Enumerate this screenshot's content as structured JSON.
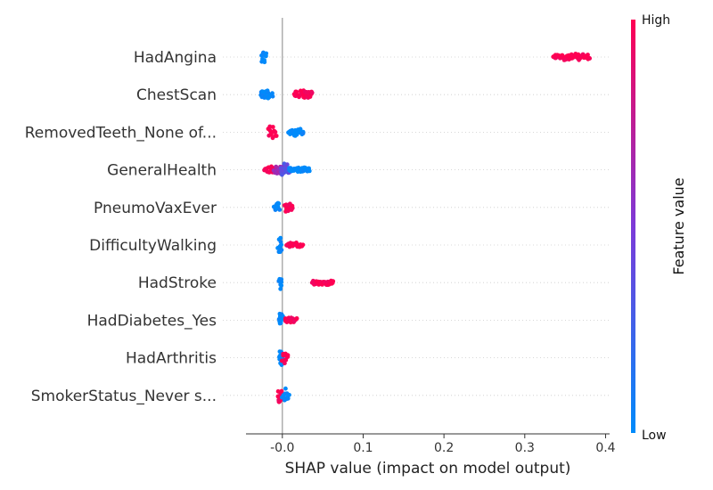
{
  "colors": {
    "low": "#008bfb",
    "high": "#ff0052",
    "mid": "#7c3ad8",
    "axis": "#333333",
    "gridline": "#cccccc",
    "zero_line": "#999999"
  },
  "chart_data": {
    "type": "scatter",
    "subtype": "shap-beeswarm-summary",
    "xlabel": "SHAP value (impact on model output)",
    "xlim": [
      -0.045,
      0.405
    ],
    "xticks": [
      "-0.0",
      "0.1",
      "0.2",
      "0.3",
      "0.4"
    ],
    "xtick_values": [
      0.0,
      0.1,
      0.2,
      0.3,
      0.4
    ],
    "colorbar": {
      "label": "Feature value",
      "high_label": "High",
      "low_label": "Low"
    },
    "features": [
      {
        "name": "HadAngina",
        "clusters": [
          {
            "x": [
              -0.026,
              -0.02
            ],
            "level": 0.0,
            "spread": 0.65
          },
          {
            "x": [
              0.335,
              0.38
            ],
            "level": 1.0,
            "spread": 0.5
          }
        ]
      },
      {
        "name": "ChestScan",
        "clusters": [
          {
            "x": [
              -0.027,
              -0.012
            ],
            "level": 0.0,
            "spread": 0.75
          },
          {
            "x": [
              0.014,
              0.037
            ],
            "level": 1.0,
            "spread": 0.7
          }
        ]
      },
      {
        "name": "RemovedTeeth_None of...",
        "clusters": [
          {
            "x": [
              -0.018,
              -0.008
            ],
            "level": 1.0,
            "spread": 0.7
          },
          {
            "x": [
              0.008,
              0.026
            ],
            "level": 0.0,
            "spread": 0.6
          }
        ]
      },
      {
        "name": "GeneralHealth",
        "clusters": [
          {
            "x": [
              -0.022,
              -0.006
            ],
            "level": 1.0,
            "spread": 0.5
          },
          {
            "x": [
              -0.01,
              0.004
            ],
            "level": 0.6,
            "spread": 0.7
          },
          {
            "x": [
              -0.002,
              0.008
            ],
            "level": 0.35,
            "spread": 0.6
          },
          {
            "x": [
              0.008,
              0.034
            ],
            "level": 0.0,
            "spread": 0.3
          }
        ]
      },
      {
        "name": "PneumoVaxEver",
        "clusters": [
          {
            "x": [
              -0.01,
              -0.004
            ],
            "level": 0.0,
            "spread": 0.7
          },
          {
            "x": [
              0.003,
              0.013
            ],
            "level": 1.0,
            "spread": 0.5
          }
        ]
      },
      {
        "name": "DifficultyWalking",
        "clusters": [
          {
            "x": [
              -0.005,
              -0.001
            ],
            "level": 0.0,
            "spread": 0.7
          },
          {
            "x": [
              0.005,
              0.025
            ],
            "level": 1.0,
            "spread": 0.3
          }
        ]
      },
      {
        "name": "HadStroke",
        "clusters": [
          {
            "x": [
              -0.004,
              -0.001
            ],
            "level": 0.0,
            "spread": 0.7
          },
          {
            "x": [
              0.037,
              0.063
            ],
            "level": 1.0,
            "spread": 0.35
          }
        ]
      },
      {
        "name": "HadDiabetes_Yes",
        "clusters": [
          {
            "x": [
              -0.004,
              0.0
            ],
            "level": 0.0,
            "spread": 0.7
          },
          {
            "x": [
              0.003,
              0.018
            ],
            "level": 1.0,
            "spread": 0.35
          }
        ]
      },
      {
        "name": "HadArthritis",
        "clusters": [
          {
            "x": [
              -0.004,
              0.0
            ],
            "level": 0.0,
            "spread": 0.7
          },
          {
            "x": [
              0.0,
              0.007
            ],
            "level": 1.0,
            "spread": 0.5
          }
        ]
      },
      {
        "name": "SmokerStatus_Never s...",
        "clusters": [
          {
            "x": [
              -0.005,
              -0.001
            ],
            "level": 1.0,
            "spread": 0.7
          },
          {
            "x": [
              0.0,
              0.008
            ],
            "level": 0.0,
            "spread": 0.6
          }
        ]
      }
    ]
  }
}
